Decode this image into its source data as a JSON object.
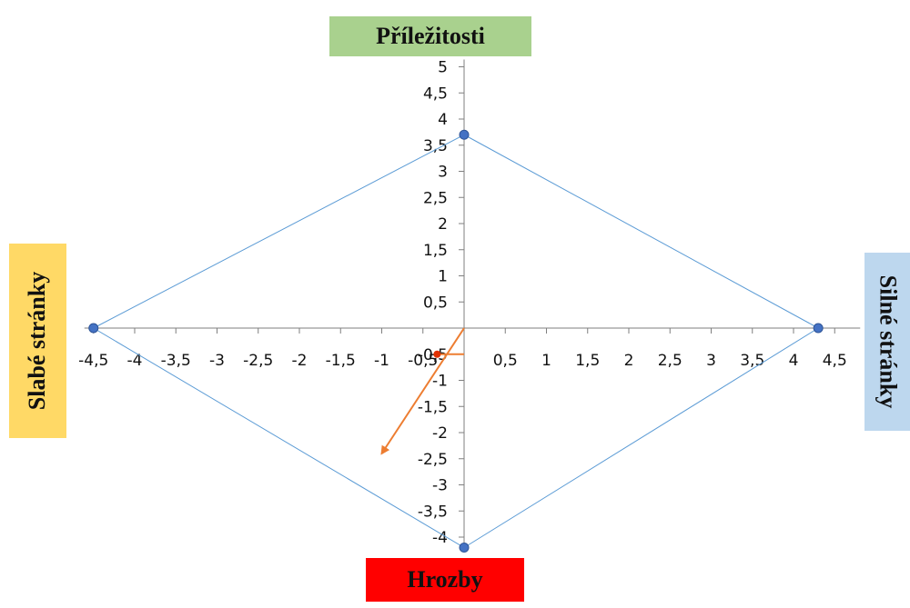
{
  "labels": {
    "top": "Příležitosti",
    "bottom": "Hrozby",
    "left": "Slabé stránky",
    "right": "Silné stránky"
  },
  "colors": {
    "top": "#a9d18e",
    "bottom": "#ff0000",
    "left": "#ffd966",
    "right": "#bdd7ee",
    "polygon": "#5b9bd5",
    "marker": "#4472c4",
    "vector": "#ed7d31"
  },
  "chart_data": {
    "type": "scatter",
    "xlim": [
      -4.5,
      4.5
    ],
    "ylim": [
      -4.2,
      5
    ],
    "xticks": [
      "-4,5",
      "-4",
      "-3,5",
      "-3",
      "-2,5",
      "-2",
      "-1,5",
      "-1",
      "-0,5",
      "0,5",
      "1",
      "1,5",
      "2",
      "2,5",
      "3",
      "3,5",
      "4",
      "4,5"
    ],
    "xtick_values": [
      -4.5,
      -4,
      -3.5,
      -3,
      -2.5,
      -2,
      -1.5,
      -1,
      -0.5,
      0.5,
      1,
      1.5,
      2,
      2.5,
      3,
      3.5,
      4,
      4.5
    ],
    "yticks": [
      "5",
      "4,5",
      "4",
      "3,5",
      "3",
      "2,5",
      "2",
      "1,5",
      "1",
      "0,5",
      "-0,5",
      "-1",
      "-1,5",
      "-2",
      "-2,5",
      "-3",
      "-3,5",
      "-4"
    ],
    "ytick_values": [
      5,
      4.5,
      4,
      3.5,
      3,
      2.5,
      2,
      1.5,
      1,
      0.5,
      -0.5,
      -1,
      -1.5,
      -2,
      -2.5,
      -3,
      -3.5,
      -4
    ],
    "polygon": [
      {
        "x": 0,
        "y": 3.7
      },
      {
        "x": 4.3,
        "y": 0
      },
      {
        "x": 0,
        "y": -4.2
      },
      {
        "x": -4.5,
        "y": 0
      }
    ],
    "vector": {
      "from": {
        "x": 0,
        "y": 0
      },
      "to": {
        "x": -1,
        "y": -2.4
      }
    },
    "small_vector": {
      "from": {
        "x": 0,
        "y": -0.5
      },
      "to": {
        "x": -0.35,
        "y": -0.5
      }
    },
    "grid": false,
    "legend": "none"
  }
}
